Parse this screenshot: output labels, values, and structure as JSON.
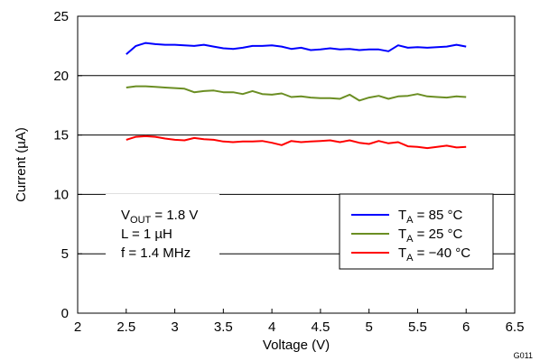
{
  "chart_data": {
    "type": "line",
    "xlabel": "Voltage (V)",
    "ylabel": "Current (µA)",
    "xlim": [
      2,
      6.5
    ],
    "ylim": [
      0,
      25
    ],
    "xticks": [
      "2",
      "2.5",
      "3",
      "3.5",
      "4",
      "4.5",
      "5",
      "5.5",
      "6",
      "6.5"
    ],
    "yticks": [
      "0",
      "5",
      "10",
      "15",
      "20",
      "25"
    ],
    "grid": "horizontal",
    "x": [
      2.5,
      2.6,
      2.7,
      2.8,
      2.9,
      3.0,
      3.1,
      3.2,
      3.3,
      3.4,
      3.5,
      3.6,
      3.7,
      3.8,
      3.9,
      4.0,
      4.1,
      4.2,
      4.3,
      4.4,
      4.5,
      4.6,
      4.7,
      4.8,
      4.9,
      5.0,
      5.1,
      5.2,
      5.3,
      5.4,
      5.5,
      5.6,
      5.7,
      5.8,
      5.9,
      6.0
    ],
    "series": [
      {
        "name": "TA = 85 °C",
        "color": "#0000ff",
        "legend": {
          "main": "T",
          "sub": "A",
          "rest": " = 85 °C"
        },
        "values": [
          21.8,
          22.5,
          22.75,
          22.65,
          22.6,
          22.6,
          22.55,
          22.5,
          22.6,
          22.45,
          22.3,
          22.25,
          22.35,
          22.5,
          22.5,
          22.55,
          22.45,
          22.25,
          22.35,
          22.15,
          22.2,
          22.3,
          22.2,
          22.25,
          22.15,
          22.2,
          22.2,
          22.05,
          22.55,
          22.35,
          22.4,
          22.35,
          22.4,
          22.45,
          22.6,
          22.45
        ]
      },
      {
        "name": "TA = 25 °C",
        "color": "#6b8e23",
        "legend": {
          "main": "T",
          "sub": "A",
          "rest": " = 25 °C"
        },
        "values": [
          19.0,
          19.1,
          19.1,
          19.05,
          19.0,
          18.95,
          18.9,
          18.6,
          18.7,
          18.75,
          18.6,
          18.6,
          18.45,
          18.7,
          18.45,
          18.4,
          18.5,
          18.2,
          18.25,
          18.15,
          18.1,
          18.1,
          18.05,
          18.4,
          17.9,
          18.15,
          18.3,
          18.05,
          18.25,
          18.3,
          18.45,
          18.25,
          18.2,
          18.15,
          18.25,
          18.2
        ]
      },
      {
        "name": "TA = −40 °C",
        "color": "#ff0000",
        "legend": {
          "main": "T",
          "sub": "A",
          "rest": " = −40 °C"
        },
        "values": [
          14.6,
          14.85,
          14.9,
          14.85,
          14.7,
          14.6,
          14.55,
          14.75,
          14.65,
          14.6,
          14.45,
          14.4,
          14.45,
          14.45,
          14.5,
          14.35,
          14.15,
          14.5,
          14.4,
          14.45,
          14.5,
          14.55,
          14.4,
          14.55,
          14.35,
          14.25,
          14.5,
          14.3,
          14.4,
          14.05,
          14.0,
          13.9,
          14.0,
          14.1,
          13.95,
          14.0
        ]
      }
    ],
    "annotation": [
      {
        "main": "V",
        "sub": "OUT",
        "rest": " = 1.8 V"
      },
      {
        "main": "L = 1 µH",
        "sub": "",
        "rest": ""
      },
      {
        "main": "f = 1.4 MHz",
        "sub": "",
        "rest": ""
      }
    ],
    "legend_position": "bottom-right",
    "figure_id": "G011"
  }
}
